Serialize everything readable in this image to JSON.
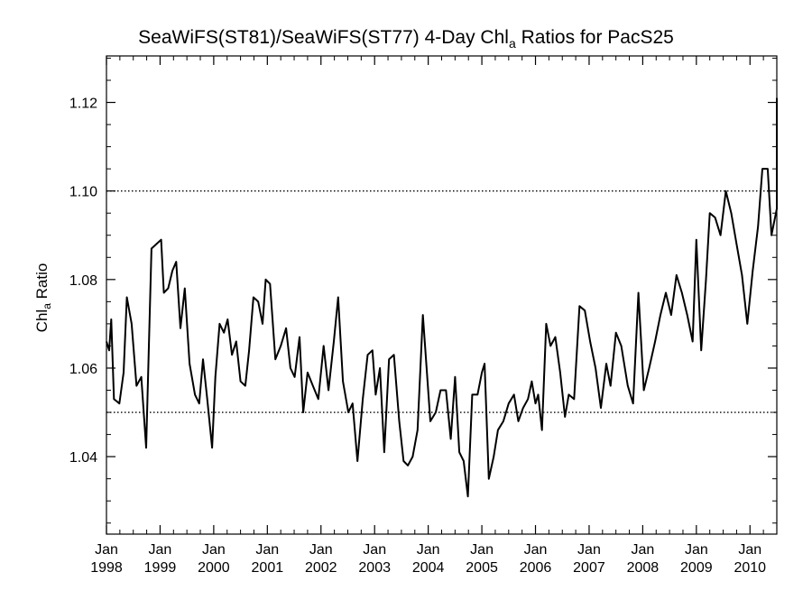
{
  "chart_data": {
    "type": "line",
    "title": {
      "pre": "SeaWiFS(ST81)/SeaWiFS(ST77) 4-Day Chl",
      "sub": "a",
      "post": " Ratios for PacS25"
    },
    "ylabel": {
      "pre": "Chl",
      "sub": "a",
      "post": " Ratio"
    },
    "xlabel": "",
    "xlim": [
      1998.0,
      2010.5
    ],
    "ylim": [
      1.0225,
      1.1305
    ],
    "yticks": [
      1.04,
      1.06,
      1.08,
      1.1,
      1.12
    ],
    "ytick_labels": [
      "1.04",
      "1.06",
      "1.08",
      "1.10",
      "1.12"
    ],
    "xticks": [
      {
        "year": 1998,
        "month": "Jan",
        "label": "1998"
      },
      {
        "year": 1999,
        "month": "Jan",
        "label": "1999"
      },
      {
        "year": 2000,
        "month": "Jan",
        "label": "2000"
      },
      {
        "year": 2001,
        "month": "Jan",
        "label": "2001"
      },
      {
        "year": 2002,
        "month": "Jan",
        "label": "2002"
      },
      {
        "year": 2003,
        "month": "Jan",
        "label": "2003"
      },
      {
        "year": 2004,
        "month": "Jan",
        "label": "2004"
      },
      {
        "year": 2005,
        "month": "Jan",
        "label": "2005"
      },
      {
        "year": 2006,
        "month": "Jan",
        "label": "2006"
      },
      {
        "year": 2007,
        "month": "Jan",
        "label": "2007"
      },
      {
        "year": 2008,
        "month": "Jan",
        "label": "2008"
      },
      {
        "year": 2009,
        "month": "Jan",
        "label": "2009"
      },
      {
        "year": 2010,
        "month": "Jan",
        "label": "2010"
      }
    ],
    "reference_lines": [
      1.05,
      1.1
    ],
    "grid": false,
    "series": [
      {
        "color": "#000000",
        "points": [
          [
            1998.0,
            1.066
          ],
          [
            1998.05,
            1.064
          ],
          [
            1998.09,
            1.071
          ],
          [
            1998.14,
            1.053
          ],
          [
            1998.24,
            1.052
          ],
          [
            1998.32,
            1.059
          ],
          [
            1998.38,
            1.076
          ],
          [
            1998.47,
            1.07
          ],
          [
            1998.56,
            1.056
          ],
          [
            1998.65,
            1.058
          ],
          [
            1998.74,
            1.042
          ],
          [
            1998.84,
            1.087
          ],
          [
            1999.02,
            1.089
          ],
          [
            1999.07,
            1.077
          ],
          [
            1999.15,
            1.078
          ],
          [
            1999.23,
            1.082
          ],
          [
            1999.3,
            1.084
          ],
          [
            1999.38,
            1.069
          ],
          [
            1999.46,
            1.078
          ],
          [
            1999.55,
            1.061
          ],
          [
            1999.65,
            1.054
          ],
          [
            1999.73,
            1.052
          ],
          [
            1999.8,
            1.062
          ],
          [
            1999.88,
            1.053
          ],
          [
            1999.97,
            1.042
          ],
          [
            2000.03,
            1.058
          ],
          [
            2000.11,
            1.07
          ],
          [
            2000.19,
            1.068
          ],
          [
            2000.26,
            1.071
          ],
          [
            2000.34,
            1.063
          ],
          [
            2000.42,
            1.066
          ],
          [
            2000.5,
            1.057
          ],
          [
            2000.59,
            1.056
          ],
          [
            2000.66,
            1.064
          ],
          [
            2000.74,
            1.076
          ],
          [
            2000.83,
            1.075
          ],
          [
            2000.91,
            1.07
          ],
          [
            2000.97,
            1.08
          ],
          [
            2001.05,
            1.079
          ],
          [
            2001.15,
            1.062
          ],
          [
            2001.25,
            1.065
          ],
          [
            2001.35,
            1.069
          ],
          [
            2001.43,
            1.06
          ],
          [
            2001.51,
            1.058
          ],
          [
            2001.6,
            1.067
          ],
          [
            2001.67,
            1.05
          ],
          [
            2001.75,
            1.059
          ],
          [
            2001.85,
            1.056
          ],
          [
            2001.95,
            1.053
          ],
          [
            2002.05,
            1.065
          ],
          [
            2002.14,
            1.055
          ],
          [
            2002.24,
            1.066
          ],
          [
            2002.32,
            1.076
          ],
          [
            2002.41,
            1.057
          ],
          [
            2002.51,
            1.05
          ],
          [
            2002.59,
            1.052
          ],
          [
            2002.68,
            1.039
          ],
          [
            2002.78,
            1.053
          ],
          [
            2002.87,
            1.063
          ],
          [
            2002.96,
            1.064
          ],
          [
            2003.02,
            1.054
          ],
          [
            2003.1,
            1.06
          ],
          [
            2003.18,
            1.041
          ],
          [
            2003.27,
            1.062
          ],
          [
            2003.36,
            1.063
          ],
          [
            2003.46,
            1.048
          ],
          [
            2003.54,
            1.039
          ],
          [
            2003.62,
            1.038
          ],
          [
            2003.71,
            1.04
          ],
          [
            2003.8,
            1.046
          ],
          [
            2003.9,
            1.072
          ],
          [
            2004.04,
            1.048
          ],
          [
            2004.14,
            1.05
          ],
          [
            2004.23,
            1.055
          ],
          [
            2004.33,
            1.055
          ],
          [
            2004.42,
            1.044
          ],
          [
            2004.5,
            1.058
          ],
          [
            2004.58,
            1.041
          ],
          [
            2004.66,
            1.039
          ],
          [
            2004.74,
            1.031
          ],
          [
            2004.82,
            1.054
          ],
          [
            2004.92,
            1.054
          ],
          [
            2005.0,
            1.059
          ],
          [
            2005.05,
            1.061
          ],
          [
            2005.13,
            1.035
          ],
          [
            2005.22,
            1.04
          ],
          [
            2005.3,
            1.046
          ],
          [
            2005.4,
            1.048
          ],
          [
            2005.5,
            1.052
          ],
          [
            2005.6,
            1.054
          ],
          [
            2005.68,
            1.048
          ],
          [
            2005.77,
            1.051
          ],
          [
            2005.86,
            1.053
          ],
          [
            2005.93,
            1.057
          ],
          [
            2006.0,
            1.052
          ],
          [
            2006.05,
            1.054
          ],
          [
            2006.12,
            1.046
          ],
          [
            2006.2,
            1.07
          ],
          [
            2006.28,
            1.065
          ],
          [
            2006.37,
            1.067
          ],
          [
            2006.46,
            1.059
          ],
          [
            2006.55,
            1.049
          ],
          [
            2006.62,
            1.054
          ],
          [
            2006.72,
            1.053
          ],
          [
            2006.82,
            1.074
          ],
          [
            2006.92,
            1.073
          ],
          [
            2007.02,
            1.066
          ],
          [
            2007.12,
            1.06
          ],
          [
            2007.22,
            1.051
          ],
          [
            2007.32,
            1.061
          ],
          [
            2007.4,
            1.056
          ],
          [
            2007.5,
            1.068
          ],
          [
            2007.6,
            1.065
          ],
          [
            2007.72,
            1.056
          ],
          [
            2007.82,
            1.052
          ],
          [
            2007.92,
            1.077
          ],
          [
            2008.02,
            1.055
          ],
          [
            2008.12,
            1.06
          ],
          [
            2008.23,
            1.066
          ],
          [
            2008.33,
            1.072
          ],
          [
            2008.43,
            1.077
          ],
          [
            2008.53,
            1.072
          ],
          [
            2008.63,
            1.081
          ],
          [
            2008.73,
            1.077
          ],
          [
            2008.83,
            1.072
          ],
          [
            2008.93,
            1.066
          ],
          [
            2009.0,
            1.089
          ],
          [
            2009.09,
            1.064
          ],
          [
            2009.18,
            1.08
          ],
          [
            2009.25,
            1.095
          ],
          [
            2009.35,
            1.094
          ],
          [
            2009.45,
            1.09
          ],
          [
            2009.55,
            1.1
          ],
          [
            2009.65,
            1.095
          ],
          [
            2009.75,
            1.088
          ],
          [
            2009.85,
            1.081
          ],
          [
            2009.95,
            1.07
          ],
          [
            2010.05,
            1.082
          ],
          [
            2010.15,
            1.092
          ],
          [
            2010.23,
            1.105
          ],
          [
            2010.33,
            1.105
          ],
          [
            2010.4,
            1.09
          ],
          [
            2010.5,
            1.096
          ],
          [
            2010.6,
            1.1
          ],
          [
            2010.7,
            1.102
          ],
          [
            2010.8,
            1.119
          ],
          [
            2010.87,
            1.121
          ]
        ]
      }
    ]
  }
}
